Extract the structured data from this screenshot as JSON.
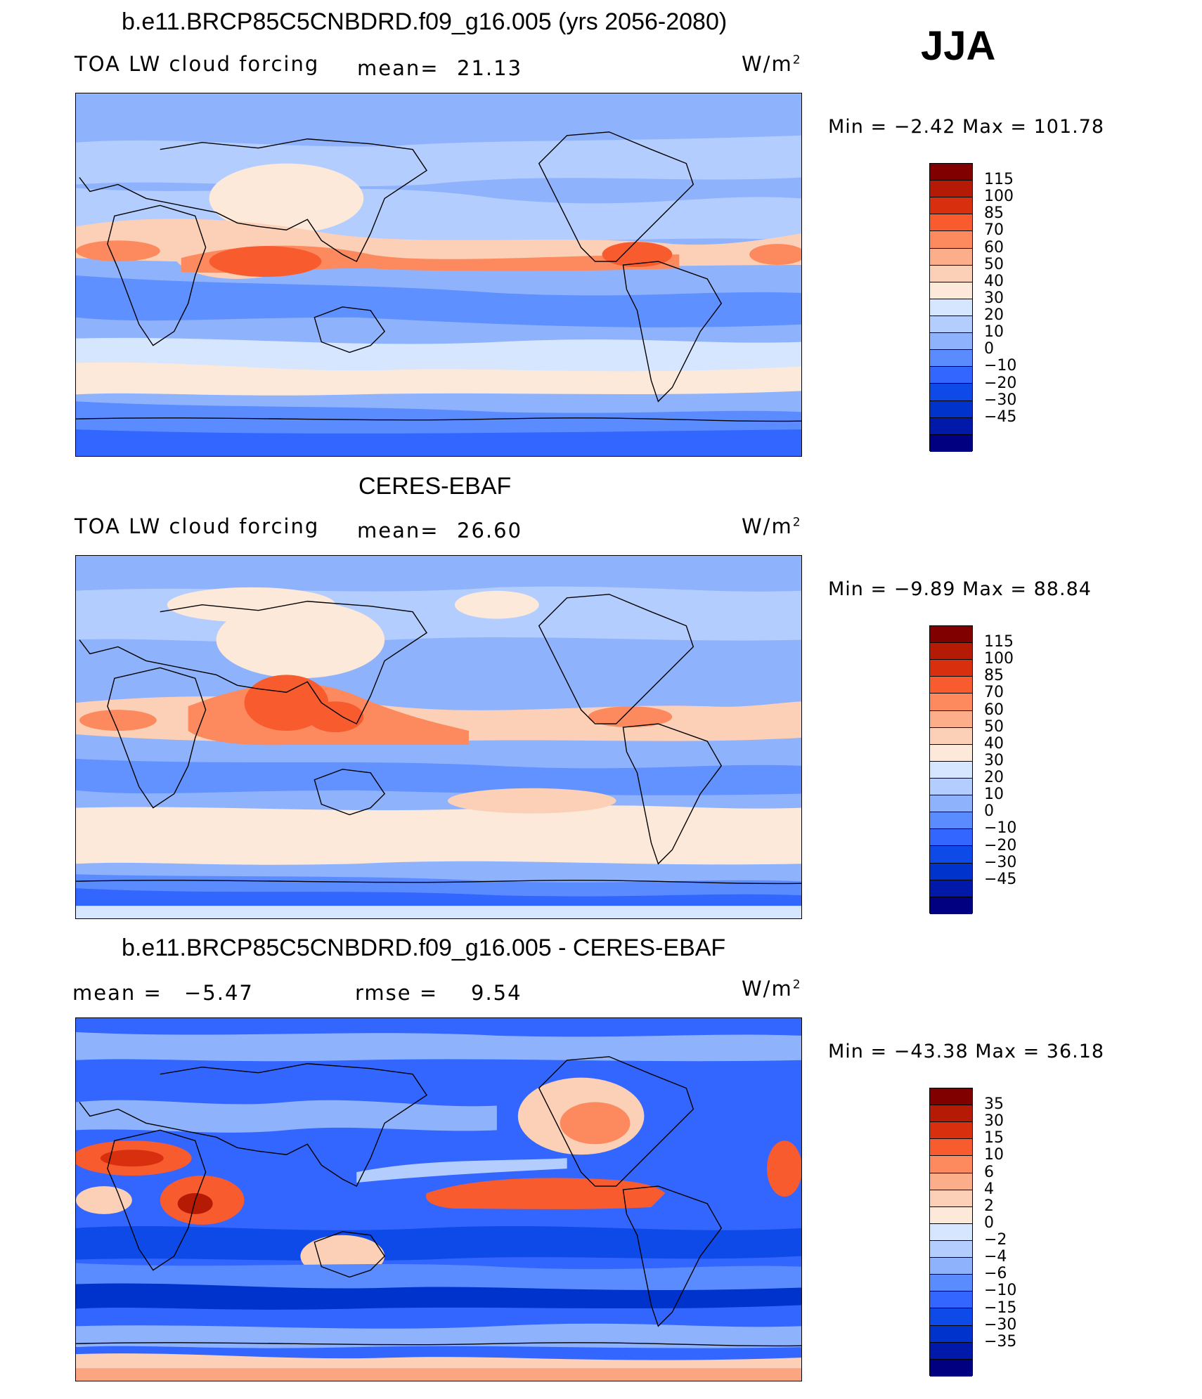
{
  "season": "JJA",
  "colors": {
    "full_scale": [
      "#000080",
      "#0019a8",
      "#0033cc",
      "#0d4ae8",
      "#3366ff",
      "#5a8cff",
      "#8fb2fd",
      "#b3cdff",
      "#d6e6ff",
      "#fde9d9",
      "#fcd0b6",
      "#fcad8a",
      "#fc8a5e",
      "#f85c2e",
      "#d8300f",
      "#b51a05",
      "#800000"
    ],
    "diff_scale": [
      "#000080",
      "#0019a8",
      "#0033cc",
      "#0d4ae8",
      "#3366ff",
      "#5a8cff",
      "#8fb2fd",
      "#b3cdff",
      "#d6e6ff",
      "#fde9d9",
      "#fcd0b6",
      "#fcad8a",
      "#fc8a5e",
      "#f85c2e",
      "#d8300f",
      "#b51a05",
      "#800000"
    ]
  },
  "panels": [
    {
      "title": "b.e11.BRCP85C5CNBDRD.f09_g16.005 (yrs 2056-2080)",
      "left_label": "TOA LW cloud forcing",
      "mean_label": "mean=",
      "mean_value": "21.13",
      "units": "W/m",
      "units_sup": "2",
      "minmax": "Min =   −2.42  Max  =  101.78",
      "colorbar_ticks": [
        "115",
        "100",
        "85",
        "70",
        "60",
        "50",
        "40",
        "30",
        "20",
        "10",
        "0",
        "−10",
        "−20",
        "−30",
        "−45"
      ]
    },
    {
      "title": "CERES-EBAF",
      "left_label": "TOA LW cloud forcing",
      "mean_label": "mean=",
      "mean_value": "26.60",
      "units": "W/m",
      "units_sup": "2",
      "minmax": "Min =   −9.89  Max  =   88.84",
      "colorbar_ticks": [
        "115",
        "100",
        "85",
        "70",
        "60",
        "50",
        "40",
        "30",
        "20",
        "10",
        "0",
        "−10",
        "−20",
        "−30",
        "−45"
      ]
    },
    {
      "title": "b.e11.BRCP85C5CNBDRD.f09_g16.005 - CERES-EBAF",
      "left_label": "mean  =",
      "left_value": "−5.47",
      "rmse_label": "rmse  =",
      "rmse_value": "9.54",
      "units": "W/m",
      "units_sup": "2",
      "minmax": "Min  = −43.38  Max  =    36.18",
      "colorbar_ticks": [
        "35",
        "30",
        "15",
        "10",
        "6",
        "4",
        "2",
        "0",
        "−2",
        "−4",
        "−6",
        "−10",
        "−15",
        "−30",
        "−35"
      ]
    }
  ],
  "chart_data": [
    {
      "type": "heatmap",
      "title": "b.e11.BRCP85C5CNBDRD.f09_g16.005 (yrs 2056-2080)",
      "subtitle": "TOA LW cloud forcing",
      "units": "W/m2",
      "mean": 21.13,
      "min": -2.42,
      "max": 101.78,
      "colorbar_levels": [
        115,
        100,
        85,
        70,
        60,
        50,
        40,
        30,
        20,
        10,
        0,
        -10,
        -20,
        -30,
        -45
      ]
    },
    {
      "type": "heatmap",
      "title": "CERES-EBAF",
      "subtitle": "TOA LW cloud forcing",
      "units": "W/m2",
      "mean": 26.6,
      "min": -9.89,
      "max": 88.84,
      "colorbar_levels": [
        115,
        100,
        85,
        70,
        60,
        50,
        40,
        30,
        20,
        10,
        0,
        -10,
        -20,
        -30,
        -45
      ]
    },
    {
      "type": "heatmap",
      "title": "b.e11.BRCP85C5CNBDRD.f09_g16.005 - CERES-EBAF",
      "units": "W/m2",
      "mean": -5.47,
      "rmse": 9.54,
      "min": -43.38,
      "max": 36.18,
      "colorbar_levels": [
        35,
        30,
        15,
        10,
        6,
        4,
        2,
        0,
        -2,
        -4,
        -6,
        -10,
        -15,
        -30,
        -35
      ]
    }
  ]
}
